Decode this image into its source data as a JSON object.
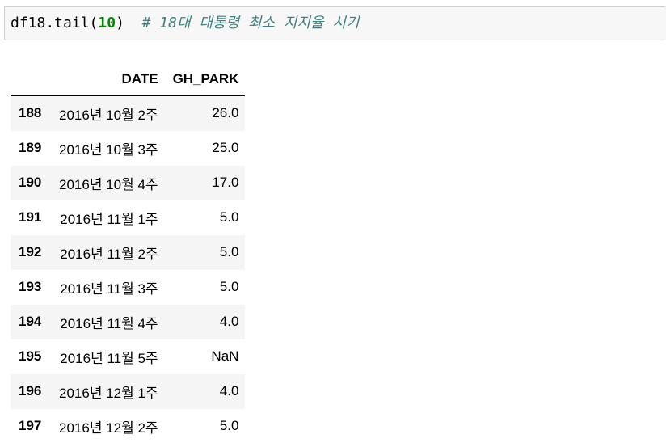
{
  "cell": {
    "code": "df18.tail(",
    "number": "10",
    "close_paren": ")",
    "comment": "# 18대 대통령 최소 지지율 시기"
  },
  "table": {
    "columns": [
      "DATE",
      "GH_PARK"
    ],
    "rows": [
      {
        "index": "188",
        "date": "2016년 10월 2주",
        "value": "26.0"
      },
      {
        "index": "189",
        "date": "2016년 10월 3주",
        "value": "25.0"
      },
      {
        "index": "190",
        "date": "2016년 10월 4주",
        "value": "17.0"
      },
      {
        "index": "191",
        "date": "2016년 11월 1주",
        "value": "5.0"
      },
      {
        "index": "192",
        "date": "2016년 11월 2주",
        "value": "5.0"
      },
      {
        "index": "193",
        "date": "2016년 11월 3주",
        "value": "5.0"
      },
      {
        "index": "194",
        "date": "2016년 11월 4주",
        "value": "4.0"
      },
      {
        "index": "195",
        "date": "2016년 11월 5주",
        "value": "NaN"
      },
      {
        "index": "196",
        "date": "2016년 12월 1주",
        "value": "4.0"
      },
      {
        "index": "197",
        "date": "2016년 12월 2주",
        "value": "5.0"
      }
    ]
  }
}
